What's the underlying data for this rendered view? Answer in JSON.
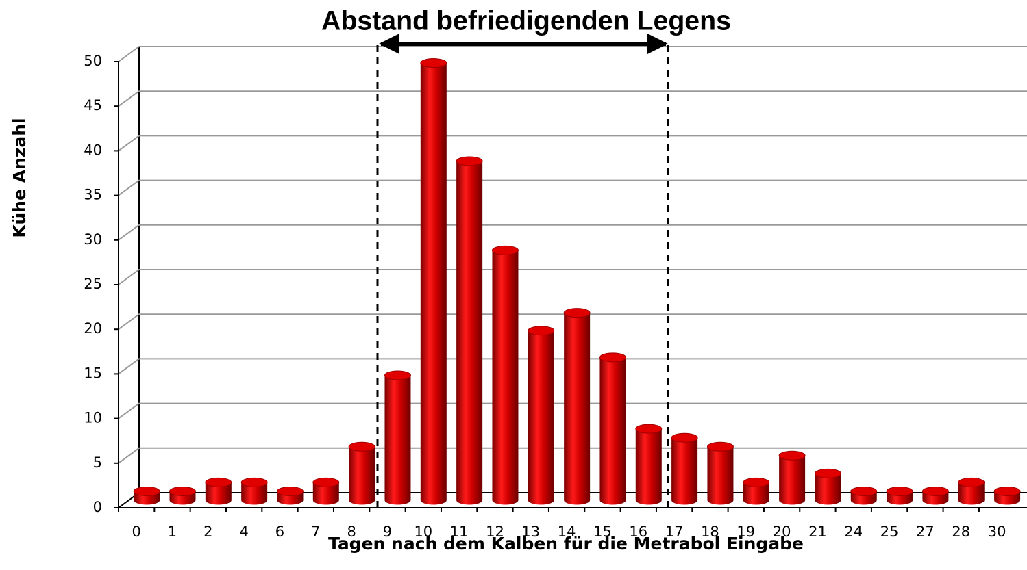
{
  "chart_data": {
    "type": "bar3d",
    "title": "Abstand befriedigenden Legens",
    "x_label": "Tagen nach dem Kalben für die Metrabol Eingabe",
    "y_label": "Kühe  Anzahl",
    "categories": [
      "0",
      "1",
      "2",
      "4",
      "6",
      "7",
      "8",
      "9",
      "10",
      "11",
      "12",
      "13",
      "14",
      "15",
      "16",
      "17",
      "18",
      "19",
      "20",
      "21",
      "24",
      "25",
      "27",
      "28",
      "30"
    ],
    "values": [
      1,
      1,
      2,
      2,
      1,
      2,
      6,
      14,
      49,
      38,
      28,
      19,
      21,
      16,
      8,
      7,
      6,
      2,
      5,
      3,
      1,
      1,
      1,
      2,
      1
    ],
    "color": "#e00000",
    "ylim": [
      0,
      50
    ],
    "yticks": [
      0,
      5,
      10,
      15,
      20,
      25,
      30,
      35,
      40,
      45,
      50
    ],
    "grid": true
  }
}
